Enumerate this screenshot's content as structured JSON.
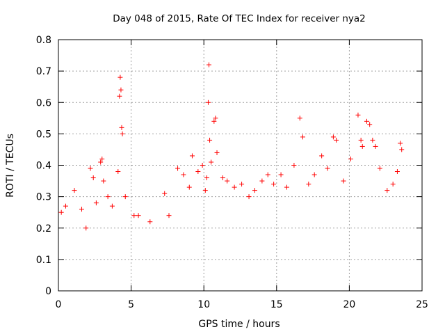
{
  "chart_data": {
    "type": "scatter",
    "title": "Day 048 of 2015, Rate Of TEC Index for receiver nya2",
    "xlabel": "GPS time / hours",
    "ylabel": "ROTI / TECUs",
    "xlim": [
      0,
      25
    ],
    "ylim": [
      0,
      0.8
    ],
    "xticks": [
      0,
      5,
      10,
      15,
      20,
      25
    ],
    "yticks": [
      0,
      0.1,
      0.2,
      0.3,
      0.4,
      0.5,
      0.6,
      0.7,
      0.8
    ],
    "xtick_labels": [
      "0",
      "5",
      "10",
      "15",
      "20",
      "25"
    ],
    "ytick_labels": [
      "0",
      "0.1",
      "0.2",
      "0.3",
      "0.4",
      "0.5",
      "0.6",
      "0.7",
      "0.8"
    ],
    "grid": true,
    "marker": "+",
    "color": "#ff0000",
    "series": [
      {
        "x": [
          0.2,
          0.5,
          1.1,
          1.6,
          1.9,
          2.2,
          2.4,
          2.6,
          2.9,
          3.0,
          3.1,
          3.4,
          3.7,
          4.1,
          4.2,
          4.25,
          4.3,
          4.35,
          4.4,
          4.6,
          5.2,
          5.5,
          6.3,
          7.3,
          7.6,
          8.2,
          8.6,
          9.0,
          9.2,
          9.6,
          9.9,
          10.1,
          10.2,
          10.3,
          10.35,
          10.4,
          10.5,
          10.7,
          10.8,
          10.9,
          11.3,
          11.6,
          12.1,
          12.6,
          13.1,
          13.5,
          14.0,
          14.4,
          14.8,
          15.3,
          15.7,
          16.2,
          16.6,
          16.8,
          17.2,
          17.6,
          18.1,
          18.5,
          18.9,
          19.1,
          19.6,
          20.1,
          20.6,
          20.8,
          20.9,
          21.2,
          21.4,
          21.6,
          21.8,
          22.1,
          22.6,
          23.0,
          23.3,
          23.5,
          23.6
        ],
        "y": [
          0.25,
          0.27,
          0.32,
          0.26,
          0.2,
          0.39,
          0.36,
          0.28,
          0.41,
          0.42,
          0.35,
          0.3,
          0.27,
          0.38,
          0.62,
          0.68,
          0.64,
          0.52,
          0.5,
          0.3,
          0.24,
          0.24,
          0.22,
          0.31,
          0.24,
          0.39,
          0.37,
          0.33,
          0.43,
          0.38,
          0.4,
          0.32,
          0.36,
          0.6,
          0.72,
          0.48,
          0.41,
          0.54,
          0.55,
          0.44,
          0.36,
          0.35,
          0.33,
          0.34,
          0.3,
          0.32,
          0.35,
          0.37,
          0.34,
          0.37,
          0.33,
          0.4,
          0.55,
          0.49,
          0.34,
          0.37,
          0.43,
          0.39,
          0.49,
          0.48,
          0.35,
          0.42,
          0.56,
          0.48,
          0.46,
          0.54,
          0.53,
          0.48,
          0.46,
          0.39,
          0.32,
          0.34,
          0.38,
          0.47,
          0.45
        ]
      }
    ]
  }
}
